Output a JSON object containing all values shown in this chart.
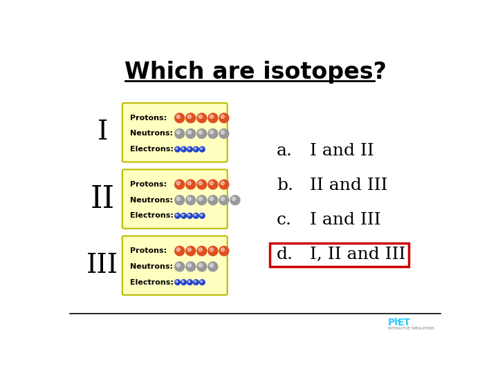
{
  "title": "Which are isotopes?",
  "background_color": "#ffffff",
  "box_bg": "#ffffc0",
  "box_edge": "#bbbb00",
  "roman_labels": [
    "I",
    "II",
    "III"
  ],
  "items": [
    {
      "protons": 5,
      "neutrons": 5,
      "electrons": 5
    },
    {
      "protons": 5,
      "neutrons": 6,
      "electrons": 5
    },
    {
      "protons": 5,
      "neutrons": 4,
      "electrons": 5
    }
  ],
  "proton_color": "#e05020",
  "neutron_color": "#999999",
  "electron_color": "#2244cc",
  "answers": [
    {
      "label": "a.",
      "text": "I and II",
      "boxed": false
    },
    {
      "label": "b.",
      "text": "II and III",
      "boxed": false
    },
    {
      "label": "c.",
      "text": "I and III",
      "boxed": false
    },
    {
      "label": "d.",
      "text": "I, II and III",
      "boxed": true
    }
  ],
  "answer_box_color": "#cc0000"
}
